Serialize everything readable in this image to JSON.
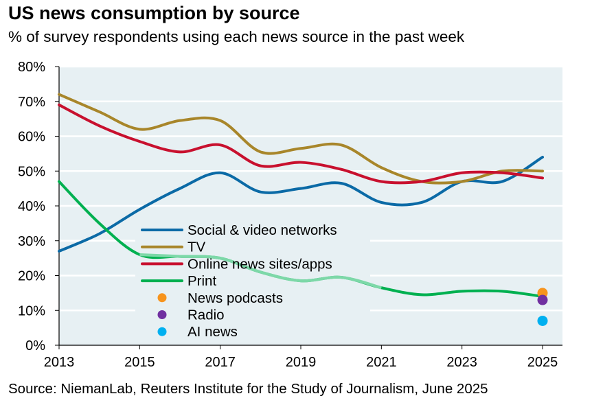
{
  "chart_data": {
    "type": "line",
    "title": "US news consumption by source",
    "subtitle": "% of survey respondents using each news source in the past week",
    "source": "Source: NiemanLab, Reuters Institute for the Study of Journalism, June 2025",
    "xlabel": "",
    "ylabel": "",
    "xlim": [
      2013,
      2025.5
    ],
    "ylim": [
      0,
      80
    ],
    "x_ticks": [
      "2013",
      "2015",
      "2017",
      "2019",
      "2021",
      "2023",
      "2025"
    ],
    "y_ticks": [
      "0%",
      "10%",
      "20%",
      "30%",
      "40%",
      "50%",
      "60%",
      "70%",
      "80%"
    ],
    "grid": true,
    "legend_position": "lower-left",
    "x": [
      2013,
      2014,
      2015,
      2016,
      2017,
      2018,
      2019,
      2020,
      2021,
      2022,
      2023,
      2024,
      2025
    ],
    "series": [
      {
        "name": "Social & video networks",
        "color": "#0b6aa6",
        "values": [
          27,
          32,
          39,
          45,
          49.5,
          44,
          45,
          46.5,
          41,
          41,
          47,
          47,
          54
        ]
      },
      {
        "name": "TV",
        "color": "#a8862a",
        "values": [
          72,
          67,
          62,
          64.5,
          64.5,
          55.5,
          56.5,
          57.5,
          51,
          47,
          47,
          50,
          50
        ]
      },
      {
        "name": "Online news sites/apps",
        "color": "#c8102e",
        "values": [
          69,
          63,
          58.5,
          55.5,
          57.5,
          51.5,
          52.5,
          50.5,
          47,
          47,
          49.5,
          49.5,
          48
        ]
      },
      {
        "name": "Print",
        "color": "#00b050",
        "light_color": "#7dd8a8",
        "light_range": [
          2015,
          2021
        ],
        "values": [
          47,
          35,
          26,
          25.5,
          25,
          21,
          18.5,
          19.5,
          16.5,
          14.5,
          15.5,
          15.5,
          14
        ]
      }
    ],
    "points": [
      {
        "name": "News podcasts",
        "color": "#f7941d",
        "x": 2025,
        "value": 15
      },
      {
        "name": "Radio",
        "color": "#7030a0",
        "x": 2025,
        "value": 13
      },
      {
        "name": "AI news",
        "color": "#00b0f0",
        "x": 2025,
        "value": 7
      }
    ]
  }
}
